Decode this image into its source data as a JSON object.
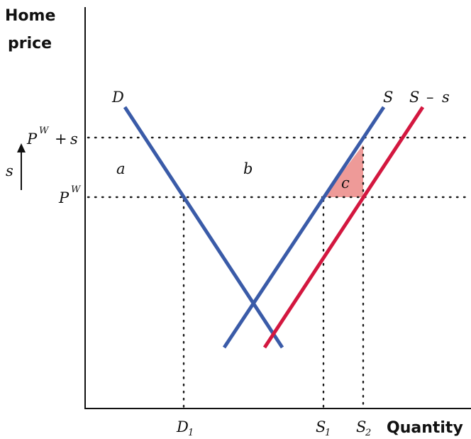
{
  "axes": {
    "y_title_line1": "Home",
    "y_title_line2": "price",
    "x_title": "Quantity"
  },
  "curve_labels": {
    "demand": "D",
    "supply": "S",
    "supply_minus_subsidy_main": "S",
    "supply_minus_subsidy_op": "–",
    "supply_minus_subsidy_s": "s"
  },
  "price_labels": {
    "pw": "P",
    "pw_sup": "W",
    "pw_plus_s_main": "P",
    "pw_plus_s_sup": "W",
    "pw_plus_s_op": "+",
    "pw_plus_s_s": "s"
  },
  "subsidy_arrow_label": "s",
  "area_labels": {
    "a": "a",
    "b": "b",
    "c": "c"
  },
  "quantity_labels": {
    "d1_main": "D",
    "d1_sub": "1",
    "s1_main": "S",
    "s1_sub": "1",
    "s2_main": "S",
    "s2_sub": "2"
  },
  "colors": {
    "demand_supply": "#3a5ba8",
    "shifted_supply": "#d3173f",
    "deadweight_area": "#ee9a98"
  }
}
